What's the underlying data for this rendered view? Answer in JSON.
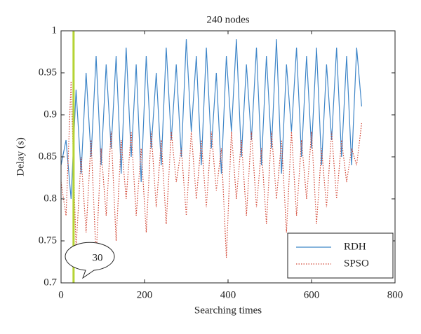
{
  "chart_data": {
    "type": "line",
    "title": "240 nodes",
    "xlabel": "Searching times",
    "ylabel": "Delay (s)",
    "x": [
      0,
      12,
      24,
      36,
      48,
      60,
      72,
      84,
      96,
      108,
      120,
      132,
      144,
      156,
      168,
      180,
      192,
      204,
      216,
      228,
      240,
      252,
      264,
      276,
      288,
      300,
      312,
      324,
      336,
      348,
      360,
      372,
      384,
      396,
      408,
      420,
      432,
      444,
      456,
      468,
      480,
      492,
      504,
      516,
      528,
      540,
      552,
      564,
      576,
      588,
      600,
      612,
      624,
      636,
      648,
      660,
      672,
      684,
      696,
      708,
      720
    ],
    "series": [
      {
        "name": "RDH",
        "color": "#3f86c8",
        "dash": "solid",
        "values": [
          0.84,
          0.87,
          0.8,
          0.93,
          0.83,
          0.95,
          0.85,
          0.97,
          0.84,
          0.96,
          0.86,
          0.97,
          0.83,
          0.98,
          0.85,
          0.96,
          0.82,
          0.97,
          0.86,
          0.95,
          0.84,
          0.98,
          0.87,
          0.96,
          0.85,
          0.99,
          0.88,
          0.97,
          0.84,
          0.98,
          0.86,
          0.95,
          0.83,
          0.97,
          0.88,
          0.99,
          0.85,
          0.96,
          0.87,
          0.98,
          0.84,
          0.97,
          0.86,
          0.99,
          0.83,
          0.96,
          0.88,
          0.98,
          0.85,
          0.97,
          0.86,
          0.98,
          0.84,
          0.96,
          0.87,
          0.98,
          0.85,
          0.97,
          0.84,
          0.98,
          0.91
        ]
      },
      {
        "name": "SPSO",
        "color": "#d0402e",
        "dash": "dotted",
        "values": [
          0.82,
          0.78,
          0.94,
          0.74,
          0.85,
          0.76,
          0.87,
          0.73,
          0.86,
          0.78,
          0.88,
          0.75,
          0.87,
          0.8,
          0.88,
          0.78,
          0.86,
          0.76,
          0.88,
          0.79,
          0.87,
          0.77,
          0.88,
          0.82,
          0.86,
          0.78,
          0.88,
          0.8,
          0.87,
          0.79,
          0.88,
          0.81,
          0.86,
          0.73,
          0.88,
          0.8,
          0.87,
          0.78,
          0.88,
          0.79,
          0.86,
          0.77,
          0.88,
          0.8,
          0.87,
          0.76,
          0.88,
          0.78,
          0.87,
          0.8,
          0.88,
          0.77,
          0.86,
          0.79,
          0.88,
          0.8,
          0.87,
          0.82,
          0.86,
          0.84,
          0.89
        ]
      }
    ],
    "xlim": [
      0,
      800
    ],
    "xticks": [
      0,
      200,
      400,
      600,
      800
    ],
    "ylim": [
      0.7,
      1
    ],
    "yticks": [
      0.7,
      0.75,
      0.8,
      0.85,
      0.9,
      0.95,
      1
    ],
    "grid": false,
    "legend": "lower right",
    "annotations": [
      {
        "x": 30,
        "label": "30",
        "color": "#b5d334"
      }
    ]
  }
}
